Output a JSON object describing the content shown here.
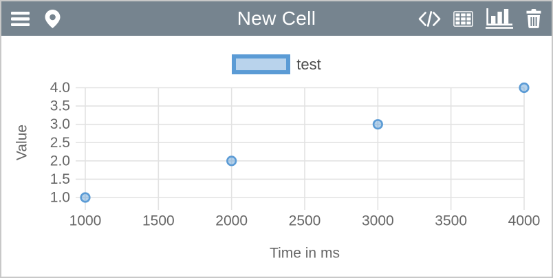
{
  "header": {
    "title": "New Cell",
    "left_icons": [
      {
        "name": "menu",
        "icon": "hamburger-icon"
      },
      {
        "name": "location",
        "icon": "location-pin-icon"
      }
    ],
    "right_icons": [
      {
        "name": "code-view",
        "icon": "code-icon",
        "active": false
      },
      {
        "name": "table-view",
        "icon": "table-icon",
        "active": false
      },
      {
        "name": "chart-view",
        "icon": "bar-chart-icon",
        "active": true
      },
      {
        "name": "delete",
        "icon": "trash-icon",
        "active": false
      }
    ]
  },
  "chart_data": {
    "type": "scatter",
    "title": "",
    "xlabel": "Time in ms",
    "ylabel": "Value",
    "xlim": [
      1000,
      4000
    ],
    "ylim": [
      1.0,
      4.0
    ],
    "grid": true,
    "legend_position": "top-center",
    "x_ticks": [
      {
        "v": 1000,
        "label": "1000"
      },
      {
        "v": 1500,
        "label": "1500"
      },
      {
        "v": 2000,
        "label": "2000"
      },
      {
        "v": 2500,
        "label": "2500"
      },
      {
        "v": 3000,
        "label": "3000"
      },
      {
        "v": 3500,
        "label": "3500"
      },
      {
        "v": 4000,
        "label": "4000"
      }
    ],
    "y_ticks": [
      {
        "v": 1.0,
        "label": "1.0"
      },
      {
        "v": 1.5,
        "label": "1.5"
      },
      {
        "v": 2.0,
        "label": "2.0"
      },
      {
        "v": 2.5,
        "label": "2.5"
      },
      {
        "v": 3.0,
        "label": "3.0"
      },
      {
        "v": 3.5,
        "label": "3.5"
      },
      {
        "v": 4.0,
        "label": "4.0"
      }
    ],
    "series": [
      {
        "name": "test",
        "points": [
          [
            1000,
            1.0
          ],
          [
            2000,
            2.0
          ],
          [
            3000,
            3.0
          ],
          [
            4000,
            4.0
          ]
        ],
        "color": "#5b9bd5",
        "fill_color": "rgba(91,155,213,0.45)"
      }
    ]
  },
  "colors": {
    "header_bg": "#76848f",
    "header_fg": "#ffffff",
    "outer_border": "#c8c8c8",
    "grid": "#e2e2e2",
    "tick_text": "#666666",
    "legend_text": "#4a4a4a",
    "accent_blue": "#5b9bd5"
  }
}
